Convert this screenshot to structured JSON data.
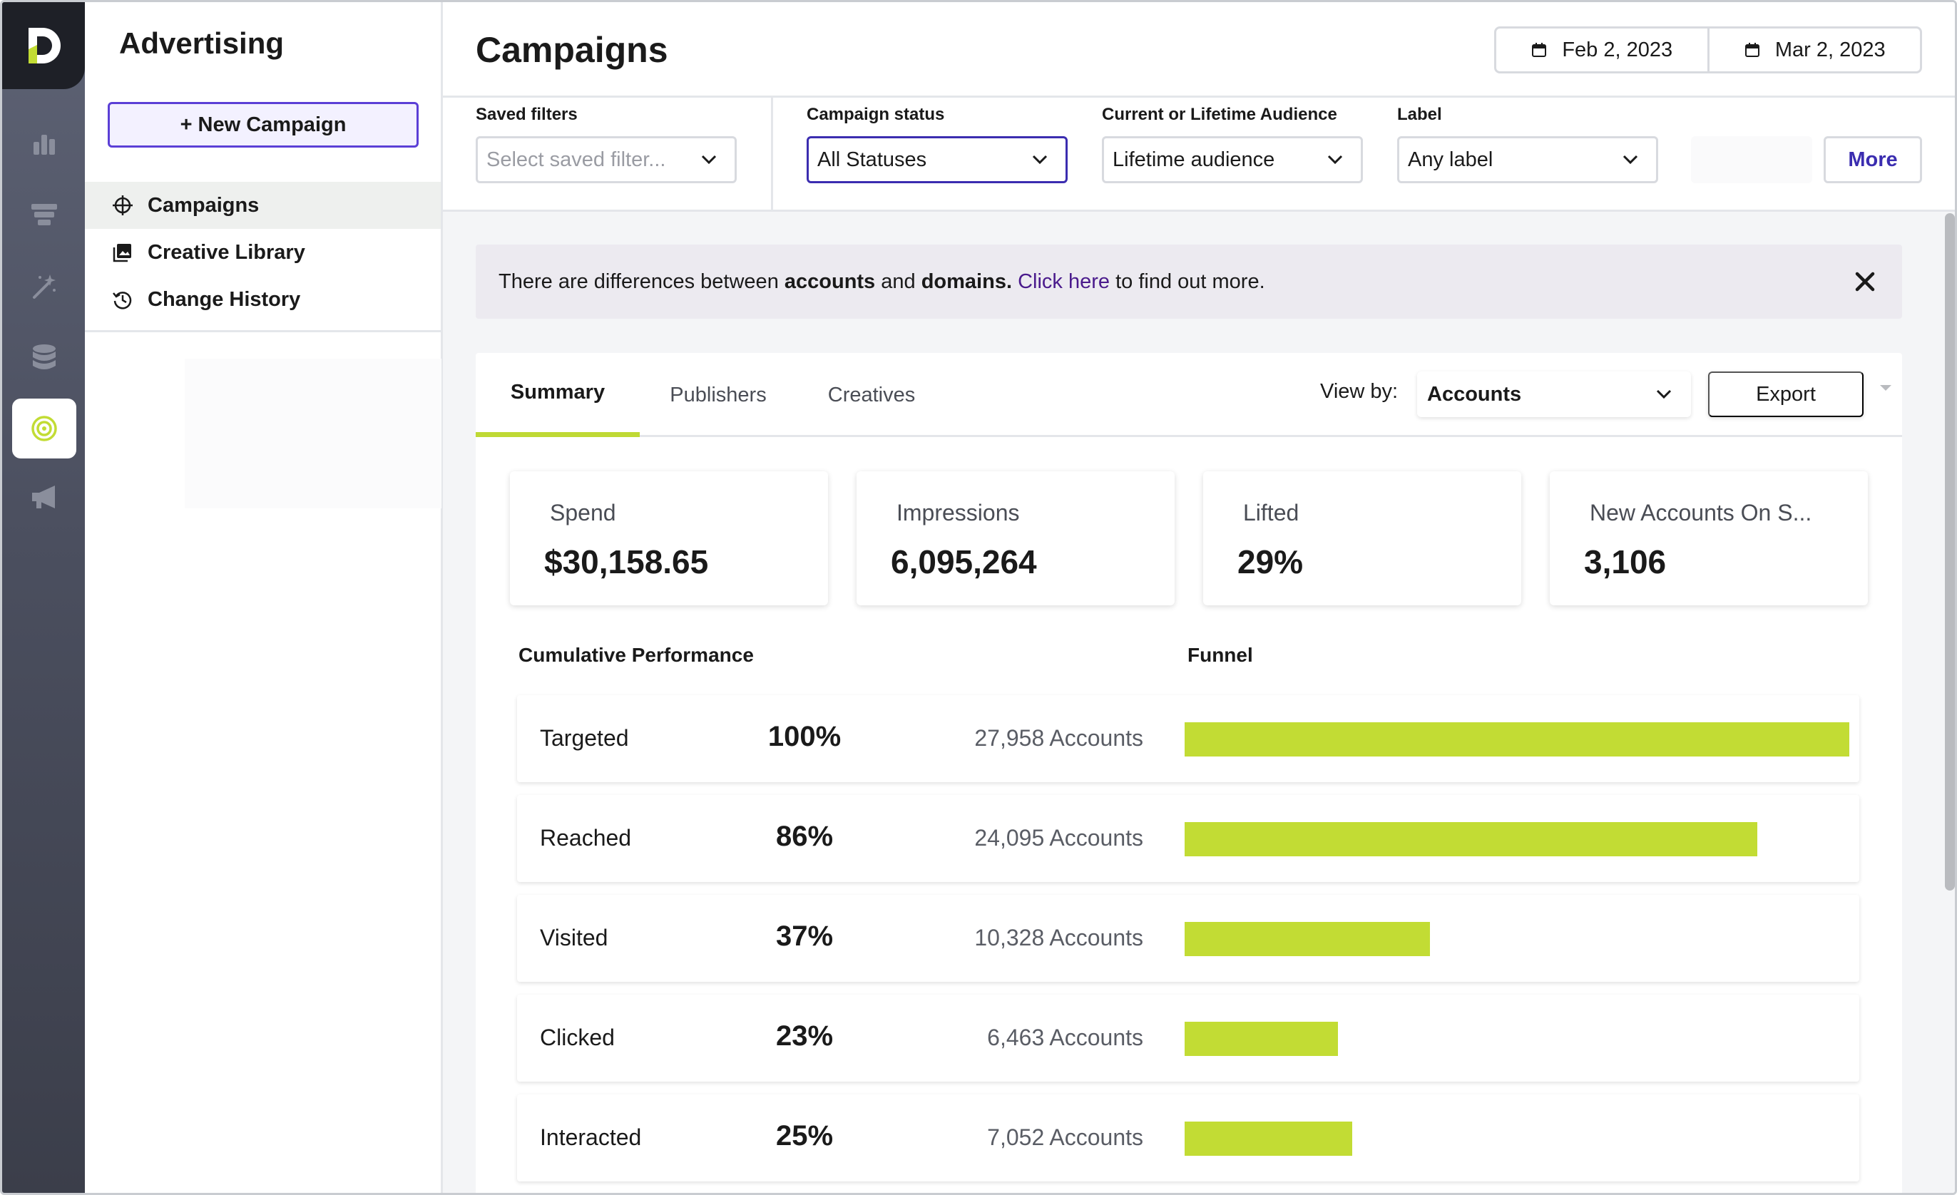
{
  "app": {
    "section_title": "Advertising",
    "new_campaign_label": "+ New Campaign"
  },
  "rail": {
    "icons": [
      "logo-d-icon",
      "bar-chart-icon",
      "funnel-icon",
      "magic-wand-icon",
      "database-icon",
      "target-icon",
      "megaphone-icon"
    ],
    "active": "target-icon",
    "accent_color": "#c2dc34"
  },
  "sidenav": {
    "items": [
      {
        "label": "Campaigns",
        "icon": "crosshair-icon",
        "active": true
      },
      {
        "label": "Creative Library",
        "icon": "image-gallery-icon",
        "active": false
      },
      {
        "label": "Change History",
        "icon": "history-icon",
        "active": false
      }
    ]
  },
  "header": {
    "title": "Campaigns",
    "date_start": "Feb 2, 2023",
    "date_end": "Mar 2, 2023"
  },
  "filters": {
    "saved_filters": {
      "label": "Saved filters",
      "placeholder": "Select saved filter..."
    },
    "campaign_status": {
      "label": "Campaign status",
      "value": "All Statuses"
    },
    "audience": {
      "label": "Current or Lifetime Audience",
      "value": "Lifetime audience"
    },
    "label_filter": {
      "label": "Label",
      "value": "Any label"
    },
    "more_label": "More"
  },
  "banner": {
    "text_1": "There are differences between ",
    "bold_1": "accounts",
    "text_2": " and ",
    "bold_2": "domains.",
    "link": "Click here",
    "text_3": " to find out more."
  },
  "tabs": {
    "items": [
      "Summary",
      "Publishers",
      "Creatives"
    ],
    "active": "Summary",
    "view_by_label": "View by:",
    "view_by_value": "Accounts",
    "export_label": "Export"
  },
  "stats": [
    {
      "label": "Spend",
      "value": "$30,158.65"
    },
    {
      "label": "Impressions",
      "value": "6,095,264"
    },
    {
      "label": "Lifted",
      "value": "29%"
    },
    {
      "label": "New Accounts On S...",
      "value": "3,106"
    }
  ],
  "sections": {
    "cumulative": "Cumulative Performance",
    "funnel": "Funnel"
  },
  "funnel": {
    "bar_color": "#c2dc34",
    "max_accounts": 27958,
    "rows": [
      {
        "name": "Targeted",
        "pct": "100%",
        "count": "27,958 Accounts",
        "accounts": 27958
      },
      {
        "name": "Reached",
        "pct": "86%",
        "count": "24,095 Accounts",
        "accounts": 24095
      },
      {
        "name": "Visited",
        "pct": "37%",
        "count": "10,328 Accounts",
        "accounts": 10328
      },
      {
        "name": "Clicked",
        "pct": "23%",
        "count": "6,463 Accounts",
        "accounts": 6463
      },
      {
        "name": "Interacted",
        "pct": "25%",
        "count": "7,052 Accounts",
        "accounts": 7052
      }
    ]
  }
}
